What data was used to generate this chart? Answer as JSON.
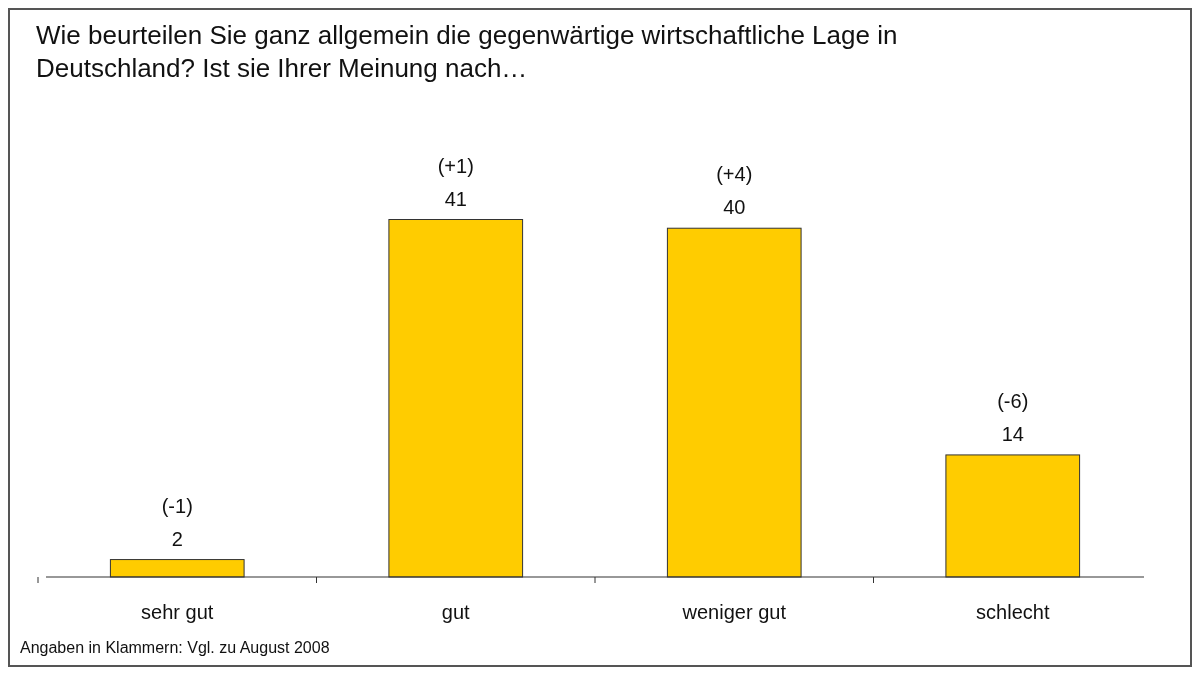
{
  "chart_data": {
    "type": "bar",
    "title": "Wie beurteilen Sie ganz allgemein die gegenwärtige wirtschaftliche Lage in Deutschland? Ist sie Ihrer Meinung nach…",
    "categories": [
      "sehr gut",
      "gut",
      "weniger gut",
      "schlecht"
    ],
    "values": [
      2,
      41,
      40,
      14
    ],
    "color": "#ffcc00",
    "data_labels": true,
    "tick_labels": "x",
    "annotations": [
      {
        "text": "(-1)",
        "x": "sehr gut",
        "y": 2
      },
      {
        "text": "(+1)",
        "x": "gut",
        "y": 41
      },
      {
        "text": "(+4)",
        "x": "weniger gut",
        "y": 40
      },
      {
        "text": "(-6)",
        "x": "schlecht",
        "y": 14
      },
      "Angaben in Klammern: Vgl. zu August 2008"
    ]
  }
}
